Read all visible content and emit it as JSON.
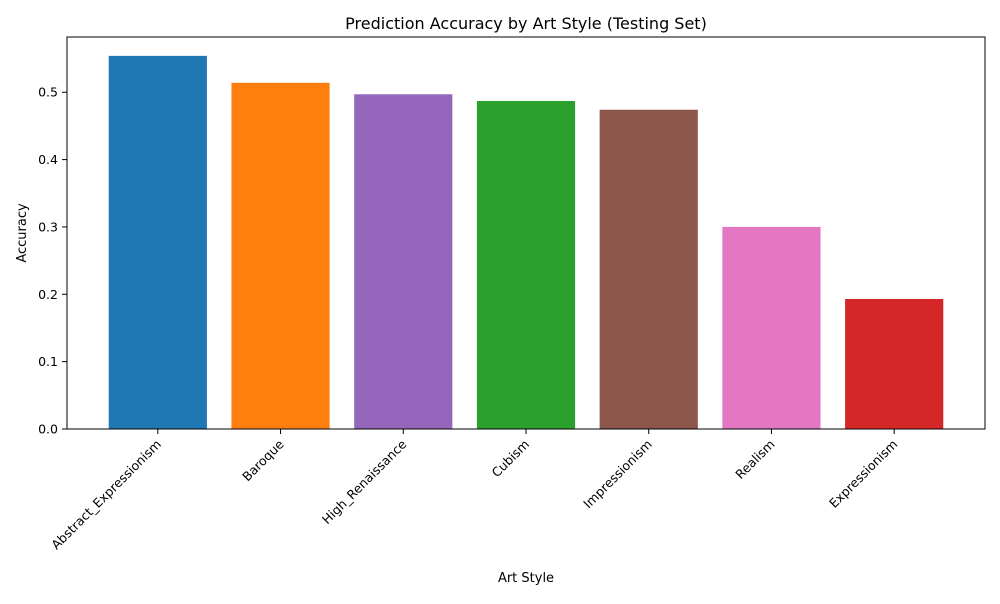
{
  "chart_data": {
    "type": "bar",
    "title": "Prediction Accuracy by Art Style (Testing Set)",
    "xlabel": "Art Style",
    "ylabel": "Accuracy",
    "categories": [
      "Abstract_Expressionism",
      "Baroque",
      "High_Renaissance",
      "Cubism",
      "Impressionism",
      "Realism",
      "Expressionism"
    ],
    "values": [
      0.554,
      0.514,
      0.497,
      0.487,
      0.474,
      0.3,
      0.193
    ],
    "colors": [
      "#1f77b4",
      "#ff7f0e",
      "#9467bd",
      "#2ca02c",
      "#8c564b",
      "#e377c2",
      "#d62728"
    ],
    "ylim": [
      0,
      0.582
    ],
    "yticks": [
      0.0,
      0.1,
      0.2,
      0.3,
      0.4,
      0.5
    ],
    "ytick_labels": [
      "0.0",
      "0.1",
      "0.2",
      "0.3",
      "0.4",
      "0.5"
    ],
    "grid": false,
    "legend": "none"
  }
}
